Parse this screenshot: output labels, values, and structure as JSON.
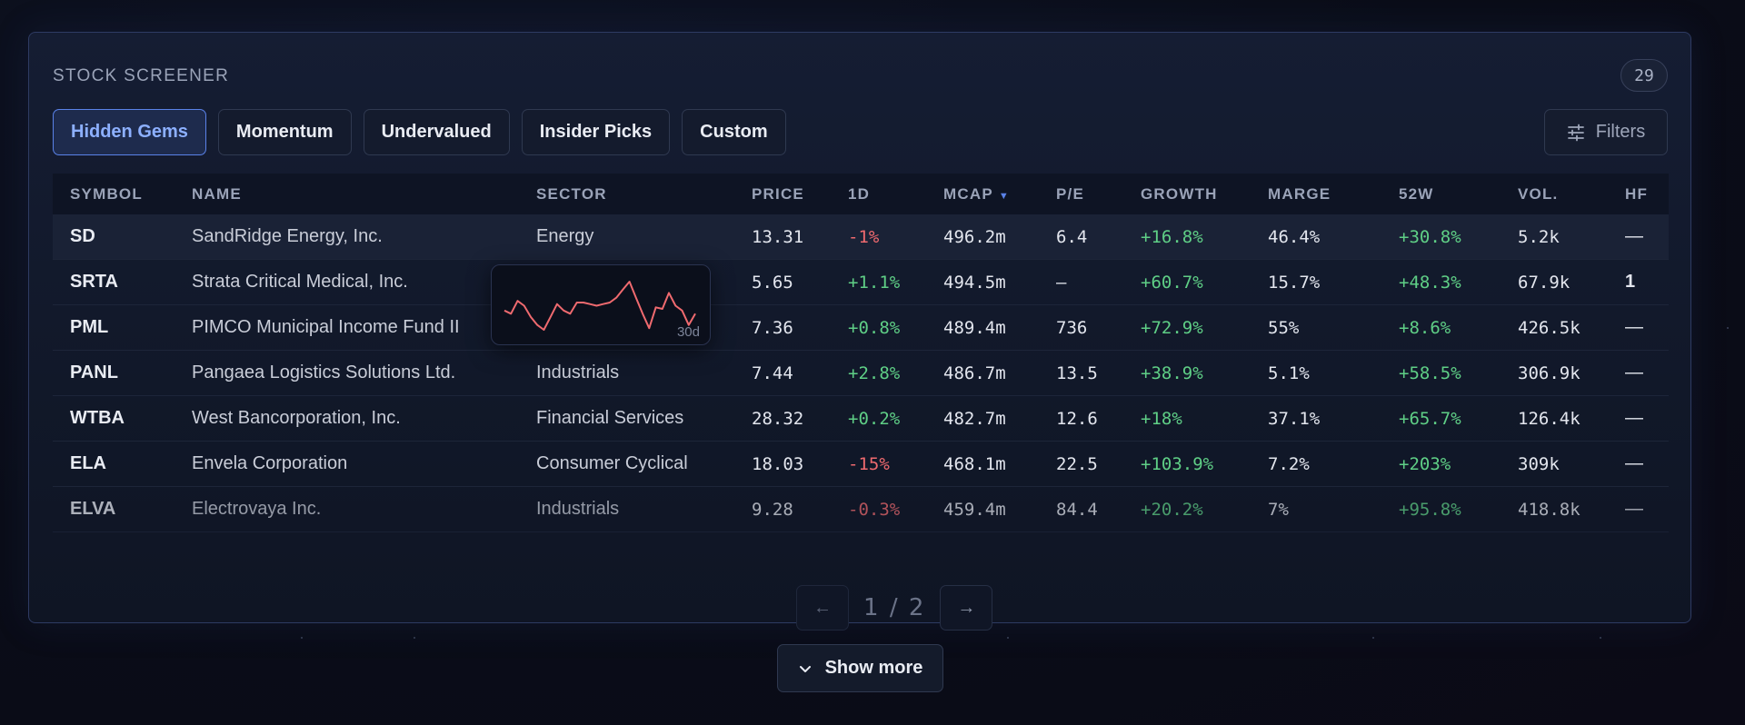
{
  "panel": {
    "title": "STOCK SCREENER",
    "count": "29"
  },
  "tabs": [
    {
      "label": "Hidden Gems",
      "active": true
    },
    {
      "label": "Momentum",
      "active": false
    },
    {
      "label": "Undervalued",
      "active": false
    },
    {
      "label": "Insider Picks",
      "active": false
    },
    {
      "label": "Custom",
      "active": false
    }
  ],
  "filters": {
    "label": "Filters",
    "icon": "sliders-icon"
  },
  "table": {
    "headers": [
      "SYMBOL",
      "NAME",
      "SECTOR",
      "PRICE",
      "1D",
      "MCAP",
      "P/E",
      "GROWTH",
      "MARGE",
      "52W",
      "VOL.",
      "HF"
    ],
    "sort_column": "MCAP",
    "rows": [
      [
        "SD",
        "SandRidge Energy, Inc.",
        "Energy",
        "13.31",
        "-1%",
        "496.2m",
        "6.4",
        "+16.8%",
        "46.4%",
        "+30.8%",
        "5.2k",
        "—"
      ],
      [
        "SRTA",
        "Strata Critical Medical, Inc.",
        "",
        "5.65",
        "+1.1%",
        "494.5m",
        "—",
        "+60.7%",
        "15.7%",
        "+48.3%",
        "67.9k",
        "1"
      ],
      [
        "PML",
        "PIMCO Municipal Income Fund II",
        "",
        "7.36",
        "+0.8%",
        "489.4m",
        "736",
        "+72.9%",
        "55%",
        "+8.6%",
        "426.5k",
        "—"
      ],
      [
        "PANL",
        "Pangaea Logistics Solutions Ltd.",
        "Industrials",
        "7.44",
        "+2.8%",
        "486.7m",
        "13.5",
        "+38.9%",
        "5.1%",
        "+58.5%",
        "306.9k",
        "—"
      ],
      [
        "WTBA",
        "West Bancorporation, Inc.",
        "Financial Services",
        "28.32",
        "+0.2%",
        "482.7m",
        "12.6",
        "+18%",
        "37.1%",
        "+65.7%",
        "126.4k",
        "—"
      ],
      [
        "ELA",
        "Envela Corporation",
        "Consumer Cyclical",
        "18.03",
        "-15%",
        "468.1m",
        "22.5",
        "+103.9%",
        "7.2%",
        "+203%",
        "309k",
        "—"
      ],
      [
        "ELVA",
        "Electrovaya Inc.",
        "Industrials",
        "9.28",
        "-0.3%",
        "459.4m",
        "84.4",
        "+20.2%",
        "7%",
        "+95.8%",
        "418.8k",
        "—"
      ]
    ]
  },
  "sparkline": {
    "label": "30d",
    "color": "#ef6a6f",
    "values": [
      40,
      38,
      46,
      43,
      36,
      31,
      28,
      36,
      44,
      40,
      38,
      45,
      45,
      44,
      43,
      44,
      45,
      48,
      53,
      58,
      48,
      38,
      29,
      42,
      41,
      51,
      43,
      40,
      31,
      38
    ]
  },
  "pagination": {
    "current": "1",
    "separator": "/",
    "total": "2",
    "prev": "←",
    "next": "→"
  },
  "show_more": {
    "label": "Show more"
  },
  "colors": {
    "positive": "#5fcf86",
    "negative": "#ef6a6f",
    "accent": "#5a82e8"
  }
}
